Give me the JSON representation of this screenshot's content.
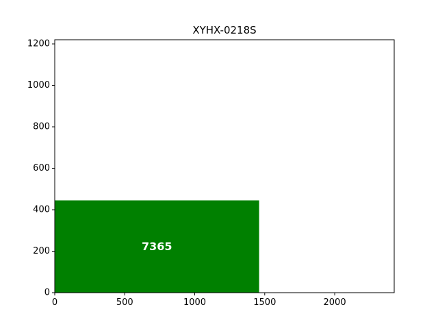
{
  "chart_data": {
    "type": "bar",
    "title": "XYHX-0218S",
    "xlabel": "",
    "ylabel": "",
    "xlim": [
      0,
      2425
    ],
    "ylim": [
      0,
      1220
    ],
    "x_ticks": [
      0,
      500,
      1000,
      1500,
      2000
    ],
    "y_ticks": [
      0,
      200,
      400,
      600,
      800,
      1000,
      1200
    ],
    "grid": false,
    "bars": [
      {
        "x_start": 0,
        "x_end": 1460,
        "height": 445,
        "label": "7365",
        "color": "#008000"
      }
    ]
  }
}
